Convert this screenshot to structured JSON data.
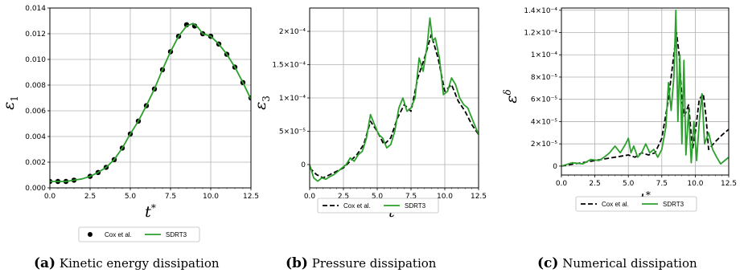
{
  "figure": {
    "series_names": [
      "Cox et al.",
      "SDRT3"
    ],
    "colors": {
      "cox": "#000000",
      "sdrt": "#2ca02c",
      "grid": "#b0b0b0"
    }
  },
  "captions": [
    {
      "letter": "(a)",
      "text": "Kinetic energy dissipation"
    },
    {
      "letter": "(b)",
      "text": "Pressure dissipation"
    },
    {
      "letter": "(c)",
      "text": "Numerical dissipation"
    }
  ],
  "chart_data": [
    {
      "type": "line",
      "ylabel": "ε1",
      "xlabel": "t*",
      "xlim": [
        0,
        12.5
      ],
      "ylim": [
        0,
        0.014
      ],
      "xticks": [
        "0.0",
        "2.5",
        "5.0",
        "7.5",
        "10.0",
        "12.5"
      ],
      "yticks": [
        "0.000",
        "0.002",
        "0.004",
        "0.006",
        "0.008",
        "0.010",
        "0.012",
        "0.014"
      ],
      "grid": true,
      "legend": "below",
      "series": [
        {
          "name": "Cox et al.",
          "style": "dots",
          "x": [
            0.0,
            0.5,
            1.0,
            1.5,
            2.5,
            3.0,
            3.5,
            4.0,
            4.5,
            5.0,
            5.5,
            6.0,
            6.5,
            7.0,
            7.5,
            8.0,
            8.5,
            9.0,
            9.5,
            10.0,
            10.5,
            11.0,
            11.5,
            12.0,
            12.5
          ],
          "y": [
            0.0005,
            0.0005,
            0.0005,
            0.0006,
            0.0009,
            0.0012,
            0.0016,
            0.0022,
            0.0031,
            0.0042,
            0.0052,
            0.0064,
            0.0077,
            0.0092,
            0.0106,
            0.0118,
            0.0127,
            0.0126,
            0.012,
            0.0118,
            0.0112,
            0.0104,
            0.0094,
            0.0082,
            0.007
          ]
        },
        {
          "name": "SDRT3",
          "style": "solid",
          "x": [
            0.0,
            0.5,
            1.0,
            1.5,
            2.0,
            2.5,
            3.0,
            3.5,
            4.0,
            4.5,
            5.0,
            5.5,
            6.0,
            6.5,
            7.0,
            7.5,
            8.0,
            8.5,
            8.9,
            9.2,
            9.5,
            10.0,
            10.5,
            11.0,
            11.5,
            12.0,
            12.5
          ],
          "y": [
            0.0005,
            0.0005,
            0.0005,
            0.0006,
            0.0007,
            0.0009,
            0.0012,
            0.0016,
            0.0022,
            0.0031,
            0.0042,
            0.0052,
            0.0064,
            0.0077,
            0.0092,
            0.0106,
            0.0118,
            0.0126,
            0.0128,
            0.0125,
            0.012,
            0.0118,
            0.0112,
            0.0104,
            0.0094,
            0.0082,
            0.0069
          ]
        }
      ]
    },
    {
      "type": "line",
      "ylabel": "ε3",
      "xlabel": "t*",
      "xlim": [
        0,
        12.5
      ],
      "ylim": [
        -3.5e-05,
        0.000235
      ],
      "xticks": [
        "0.0",
        "2.5",
        "5.0",
        "7.5",
        "10.0",
        "12.5"
      ],
      "ytick_values": [
        0,
        5e-05,
        0.0001,
        0.00015,
        0.0002
      ],
      "yticks": [
        "0",
        "5×10⁻⁵",
        "1×10⁻⁴",
        "1.5×10⁻⁴",
        "2×10⁻⁴"
      ],
      "grid": true,
      "legend": "below",
      "series": [
        {
          "name": "Cox et al.",
          "style": "dashed",
          "x": [
            0.0,
            0.5,
            1.0,
            1.5,
            2.0,
            2.5,
            3.0,
            3.5,
            4.0,
            4.5,
            5.0,
            5.5,
            6.0,
            6.5,
            7.0,
            7.5,
            8.0,
            8.5,
            9.0,
            9.5,
            10.0,
            10.5,
            11.0,
            11.5,
            12.0,
            12.5
          ],
          "y": [
            -5e-06,
            -1.5e-05,
            -2e-05,
            -1.5e-05,
            -1e-05,
            -5e-06,
            5e-06,
            1.5e-05,
            3e-05,
            6.5e-05,
            5e-05,
            3e-05,
            4e-05,
            7e-05,
            9e-05,
            8e-05,
            0.00013,
            0.00016,
            0.000195,
            0.00016,
            0.00011,
            0.00012,
            9.5e-05,
            8e-05,
            6e-05,
            4.5e-05
          ]
        },
        {
          "name": "SDRT3",
          "style": "solid",
          "x": [
            0.0,
            0.3,
            0.6,
            0.9,
            1.2,
            1.5,
            1.8,
            2.1,
            2.4,
            2.7,
            3.0,
            3.3,
            3.6,
            3.9,
            4.2,
            4.5,
            4.8,
            5.1,
            5.4,
            5.7,
            6.0,
            6.3,
            6.6,
            6.9,
            7.2,
            7.5,
            7.8,
            8.1,
            8.4,
            8.7,
            8.9,
            9.1,
            9.3,
            9.6,
            9.9,
            10.2,
            10.5,
            10.8,
            11.1,
            11.4,
            11.7,
            12.0,
            12.3,
            12.5
          ],
          "y": [
            0.0,
            -2e-05,
            -2.5e-05,
            -2e-05,
            -2.2e-05,
            -1.8e-05,
            -1.5e-05,
            -1e-05,
            -5e-06,
            0.0,
            1e-05,
            5e-06,
            1.5e-05,
            2e-05,
            4e-05,
            7.5e-05,
            6e-05,
            4.5e-05,
            4e-05,
            2.5e-05,
            3e-05,
            5e-05,
            8.5e-05,
            0.0001,
            8e-05,
            8.5e-05,
            0.0001,
            0.00016,
            0.00014,
            0.00018,
            0.00022,
            0.000185,
            0.00019,
            0.00016,
            0.000105,
            0.00011,
            0.00013,
            0.00012,
            0.0001,
            9e-05,
            8.5e-05,
            7e-05,
            5.5e-05,
            4.5e-05
          ]
        }
      ]
    },
    {
      "type": "line",
      "ylabel": "εδ",
      "xlabel": "t*",
      "xlim": [
        0,
        12.5
      ],
      "ylim": [
        -8e-06,
        0.000142
      ],
      "xticks": [
        "0.0",
        "2.5",
        "5.0",
        "7.5",
        "10.0",
        "12.5"
      ],
      "ytick_values": [
        0,
        2e-05,
        4e-05,
        6e-05,
        8e-05,
        0.0001,
        0.00012,
        0.00014
      ],
      "yticks": [
        "0",
        "2×10⁻⁵",
        "4×10⁻⁵",
        "6×10⁻⁵",
        "8×10⁻⁵",
        "1×10⁻⁴",
        "1.2×10⁻⁴",
        "1.4×10⁻⁴"
      ],
      "grid": true,
      "legend": "below",
      "series": [
        {
          "name": "Cox et al.",
          "style": "dashed",
          "x": [
            0.0,
            1.0,
            2.0,
            3.0,
            4.0,
            5.0,
            5.5,
            6.0,
            6.5,
            7.0,
            7.5,
            8.0,
            8.3,
            8.6,
            8.8,
            9.0,
            9.2,
            9.5,
            9.8,
            10.0,
            10.3,
            10.6,
            10.8,
            11.0,
            11.5,
            12.0,
            12.5
          ],
          "y": [
            0.0,
            2e-06,
            4e-06,
            6e-06,
            8e-06,
            1e-05,
            8e-06,
            1.2e-05,
            1e-05,
            1.2e-05,
            2.5e-05,
            6e-05,
            9e-05,
            0.00012,
            0.0001,
            6e-05,
            4.5e-05,
            5.5e-05,
            1.5e-05,
            3e-05,
            6e-05,
            6.5e-05,
            4.5e-05,
            1.5e-05,
            2.2e-05,
            2.8e-05,
            3.3e-05
          ]
        },
        {
          "name": "SDRT3",
          "style": "solid",
          "x": [
            0.0,
            0.8,
            1.6,
            2.2,
            2.8,
            3.2,
            3.6,
            4.0,
            4.4,
            4.8,
            5.0,
            5.2,
            5.4,
            5.7,
            6.0,
            6.3,
            6.6,
            6.9,
            7.2,
            7.5,
            7.8,
            8.0,
            8.2,
            8.4,
            8.55,
            8.7,
            8.85,
            9.0,
            9.15,
            9.3,
            9.5,
            9.7,
            9.9,
            10.1,
            10.3,
            10.5,
            10.7,
            11.0,
            11.3,
            11.6,
            11.9,
            12.2,
            12.5
          ],
          "y": [
            0.0,
            3e-06,
            2e-06,
            6e-06,
            5e-06,
            8e-06,
            1.2e-05,
            1.8e-05,
            1.2e-05,
            2e-05,
            2.5e-05,
            1.2e-05,
            1.8e-05,
            8e-06,
            1.2e-05,
            2e-05,
            1.2e-05,
            1.5e-05,
            8e-06,
            1.5e-05,
            3.5e-05,
            7.5e-05,
            5e-05,
            8e-05,
            0.00014,
            4e-05,
            0.0001,
            2e-05,
            9.5e-05,
            1e-05,
            5e-05,
            3e-06,
            4e-05,
            5e-06,
            4e-05,
            6.5e-05,
            2e-05,
            3e-05,
            1.5e-05,
            8e-06,
            2e-06,
            5e-06,
            8e-06
          ]
        }
      ]
    }
  ]
}
